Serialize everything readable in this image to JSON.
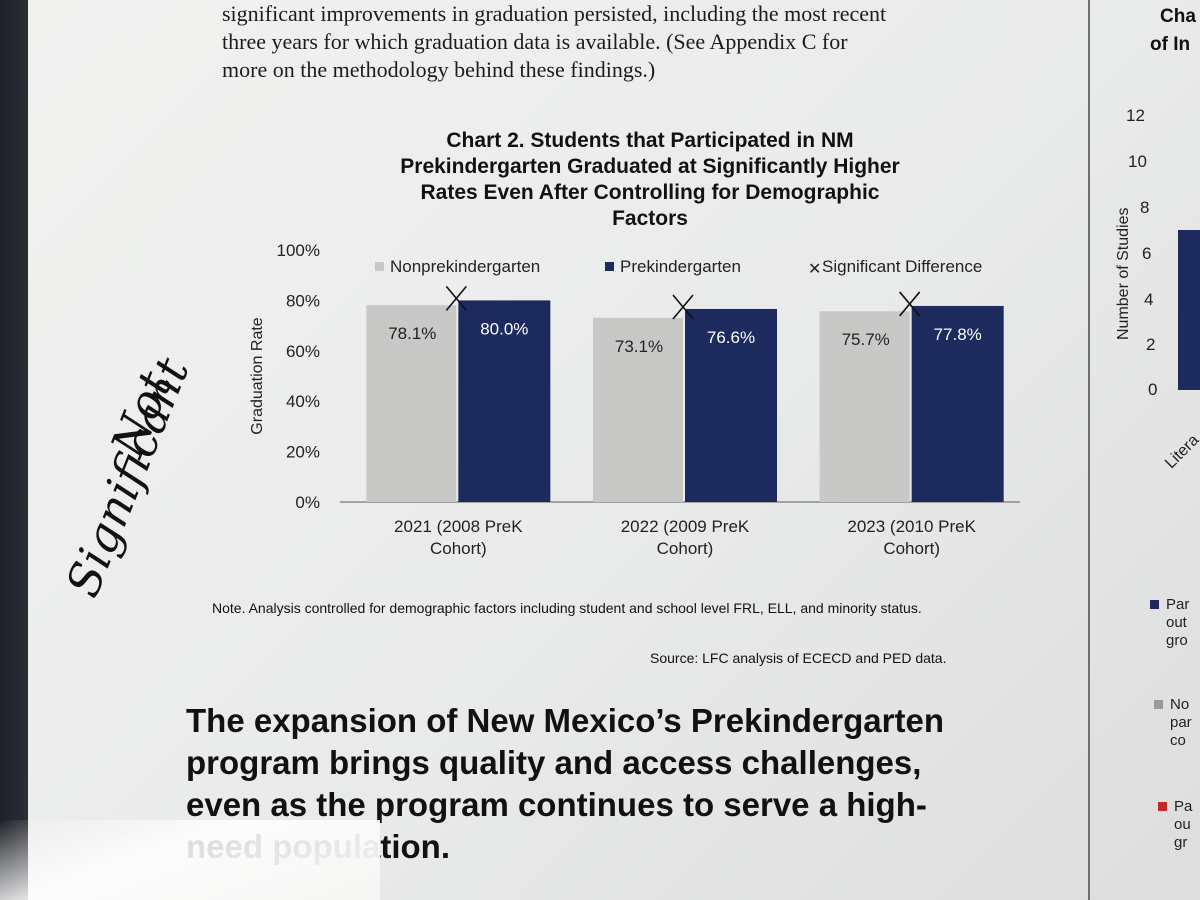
{
  "intro": [
    "significant improvements in graduation persisted, including the most recent",
    "three years for which graduation data is available. (See Appendix C for",
    "more on the methodology behind these findings.)"
  ],
  "chart_title": [
    "Chart 2. Students that Participated in NM",
    "Prekindergarten Graduated at Significantly Higher",
    "Rates Even After Controlling for Demographic",
    "Factors"
  ],
  "chart_data": {
    "type": "bar",
    "title": "Chart 2. Students that Participated in NM Prekindergarten Graduated at Significantly Higher Rates Even After Controlling for Demographic Factors",
    "xlabel": "",
    "ylabel": "Graduation Rate",
    "ylim": [
      0,
      100
    ],
    "yticks": [
      "0%",
      "20%",
      "40%",
      "60%",
      "80%",
      "100%"
    ],
    "grid": false,
    "legend_position": "top",
    "categories": [
      [
        "2021 (2008 PreK",
        "Cohort)"
      ],
      [
        "2022 (2009 PreK",
        "Cohort)"
      ],
      [
        "2023 (2010 PreK",
        "Cohort)"
      ]
    ],
    "series": [
      {
        "name": "Nonprekindergarten",
        "color": "#c8c8c6",
        "values": [
          78.1,
          73.1,
          75.7
        ],
        "labels": [
          "78.1%",
          "73.1%",
          "75.7%"
        ]
      },
      {
        "name": "Prekindergarten",
        "color": "#1c2a5e",
        "values": [
          80.0,
          76.6,
          77.8
        ],
        "labels": [
          "80.0%",
          "76.6%",
          "77.8%"
        ]
      }
    ],
    "marker_series": {
      "name": "Significant Difference",
      "symbol": "✕",
      "applies_to": [
        true,
        true,
        true
      ]
    }
  },
  "note": "Note. Analysis controlled for demographic factors including student and school level FRL, ELL, and minority status.",
  "source": "Source: LFC analysis of ECECD and PED data.",
  "headline": [
    "The expansion of New Mexico’s Prekindergarten",
    "program brings quality and access challenges,",
    "even as the program continues to serve a high-",
    "need population."
  ],
  "annotation": [
    "Not",
    "Significant"
  ],
  "right_chart": {
    "title_fragments": [
      "Cha",
      "of In"
    ],
    "yticks": [
      "0",
      "2",
      "4",
      "6",
      "8",
      "10",
      "12"
    ],
    "ylabel": "Number of Studies",
    "xlabel": "Litera",
    "legend": [
      {
        "color": "#1c2a5e",
        "lines": [
          "Par",
          "out",
          "gro"
        ]
      },
      {
        "color": "#9a9a9a",
        "lines": [
          "No",
          "par",
          "co"
        ]
      },
      {
        "color": "#c0282b",
        "lines": [
          "Pa",
          "ou",
          "gr"
        ]
      }
    ]
  }
}
